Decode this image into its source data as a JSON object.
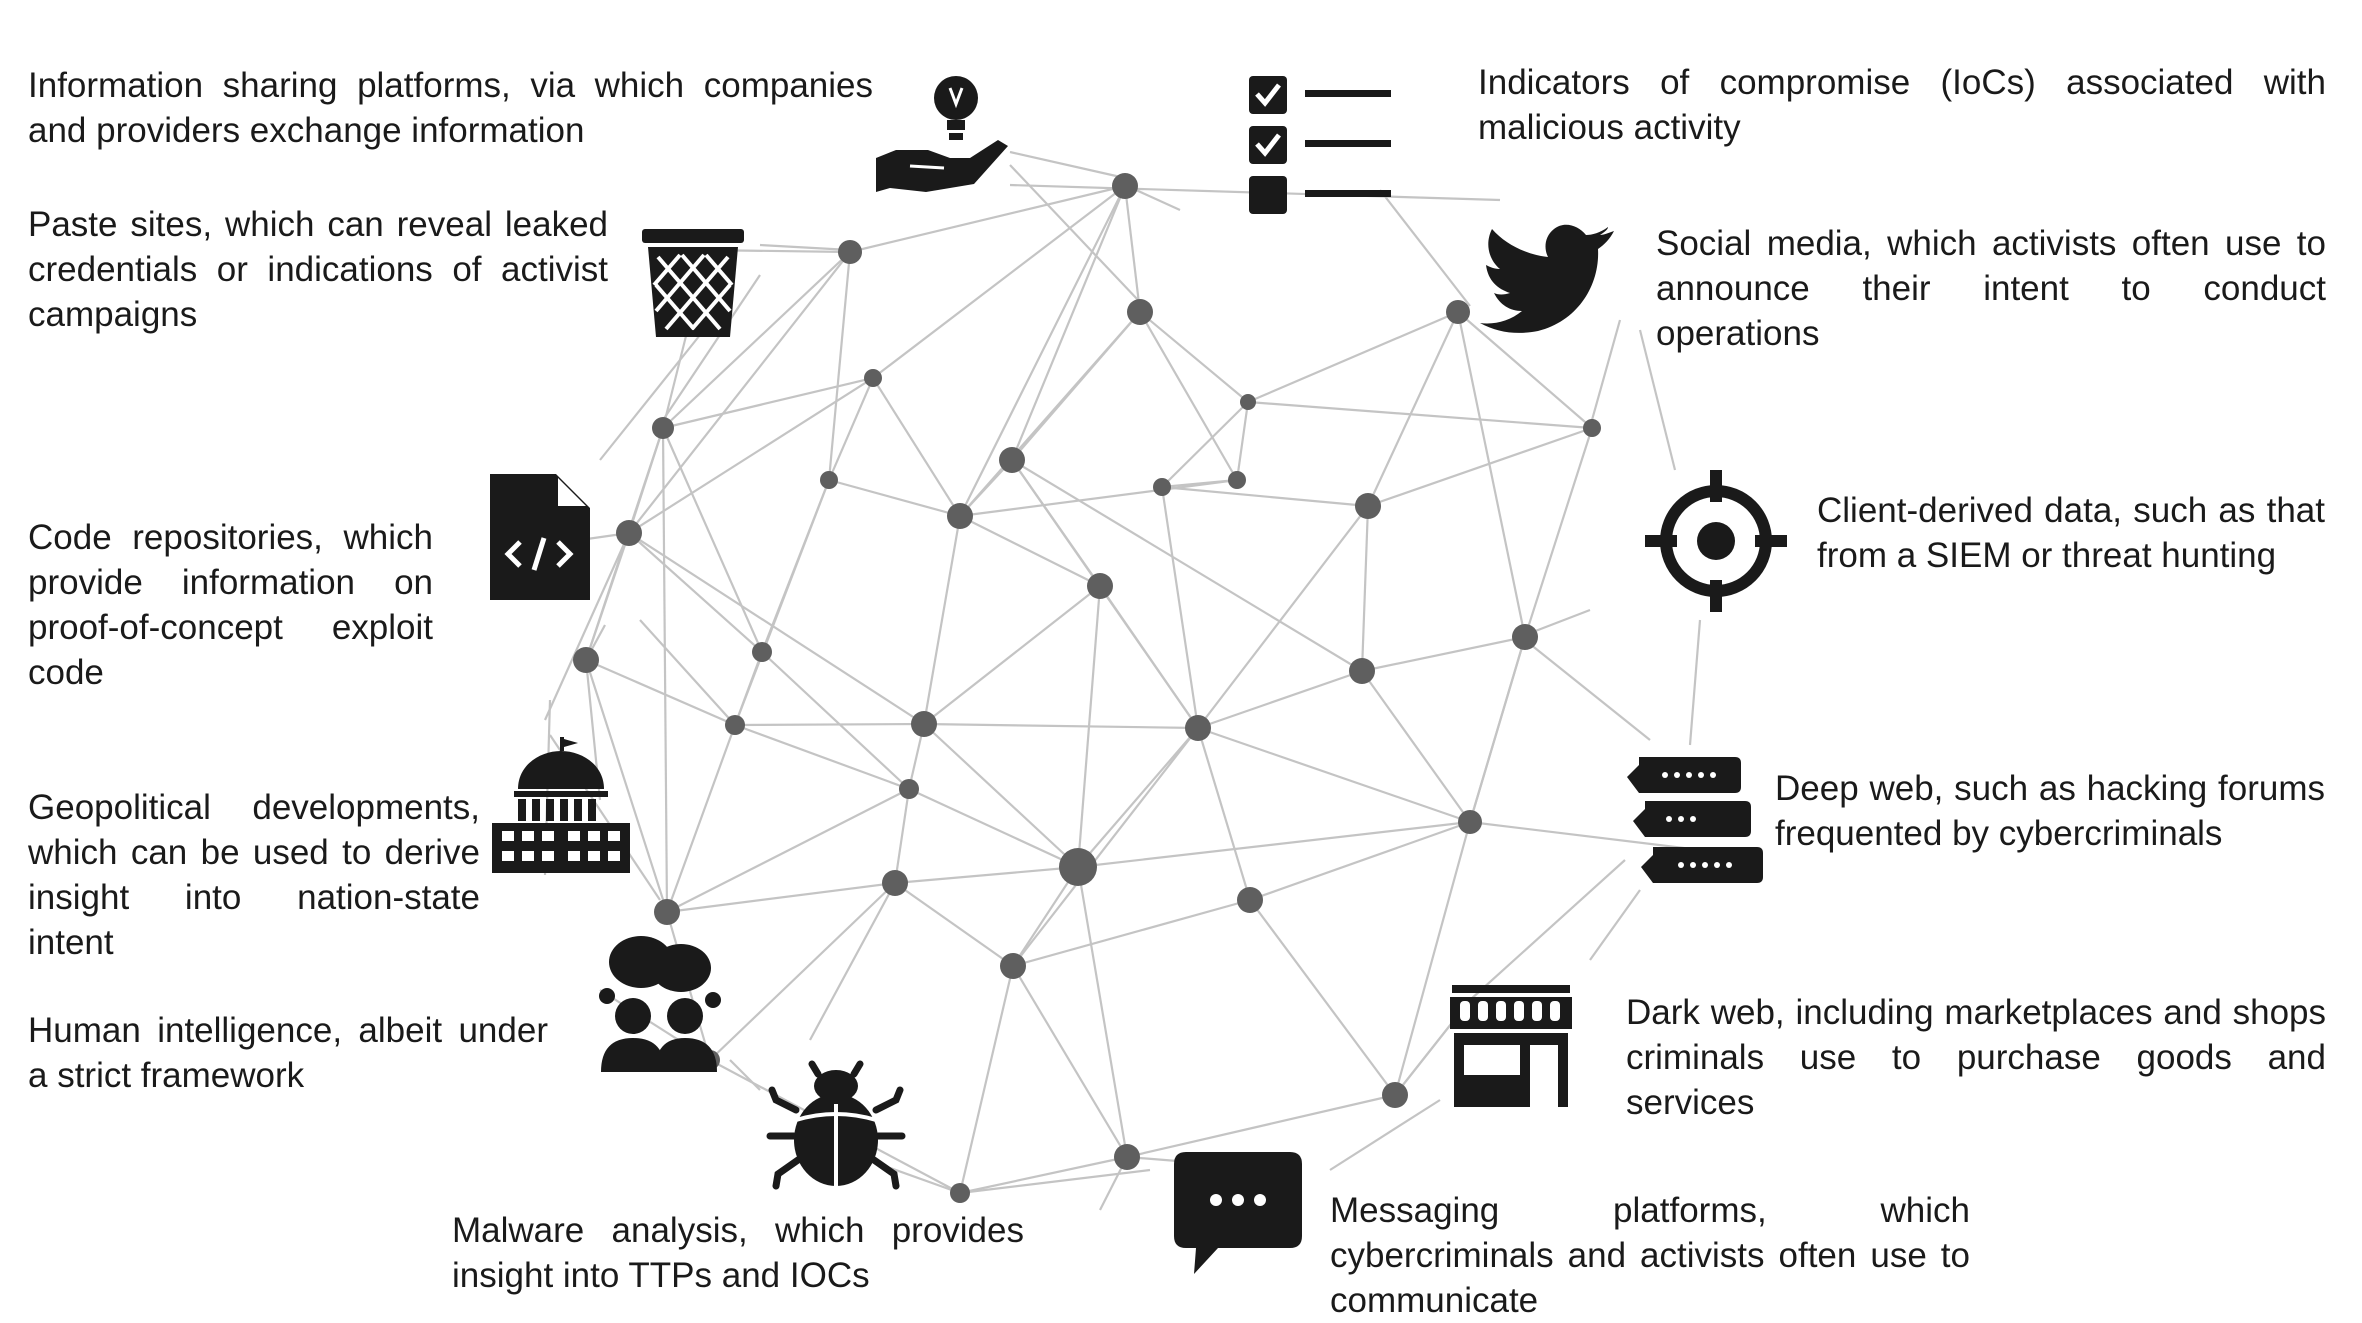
{
  "labels": {
    "sharing": "Information sharing platforms, via which companies and providers exchange information",
    "paste": "Paste sites, which can reveal leaked credentials or indications of activist campaigns",
    "code": "Code repositories, which provide information on proof-of-concept exploit code",
    "geo": "Geopolitical developments, which can be used to derive insight into nation-state intent",
    "humint": "Human intelligence, albeit under a strict framework",
    "malware": "Malware analysis, which provides insight into TTPs and IOCs",
    "messaging": "Messaging platforms, which cybercriminals and activists often use to communicate",
    "darkweb": "Dark web, including marketplaces and shops criminals use to purchase goods and services",
    "deepweb": "Deep web, such as hacking forums frequented by cybercriminals",
    "client": "Client-derived data, such as that from a SIEM or threat hunting",
    "social": "Social media, which activists often use to announce their intent to conduct operations",
    "ioc": "Indicators of compromise (IoCs) associated with malicious activity"
  },
  "icons": {
    "sharing": "hand-lightbulb-icon",
    "paste": "wastebasket-icon",
    "code": "code-file-icon",
    "geo": "capitol-building-icon",
    "humint": "people-talking-icon",
    "malware": "bug-icon",
    "messaging": "chat-bubble-icon",
    "darkweb": "storefront-icon",
    "deepweb": "forum-bubbles-icon",
    "client": "crosshair-icon",
    "social": "bird-icon",
    "ioc": "checklist-icon"
  },
  "colors": {
    "icon": "#1a1a1a",
    "node": "#5f5f5f",
    "edge": "#c4c4c4"
  }
}
